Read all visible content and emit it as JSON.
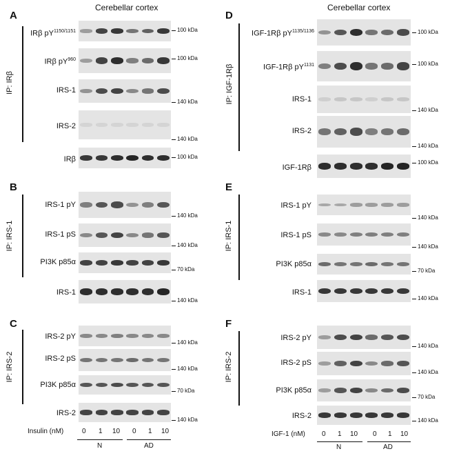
{
  "left": {
    "title": "Cerebellar cortex",
    "panels": [
      {
        "letter": "A",
        "ip": "IP: IRβ",
        "rows": [
          {
            "label": "IRβ pY",
            "sup": "1150/1151",
            "kda": "100 kDa"
          },
          {
            "label": "IRβ pY",
            "sup": "960",
            "kda": "100 kDa"
          },
          {
            "label": "IRS-1",
            "sup": "",
            "kda": "140 kDa"
          },
          {
            "label": "IRS-2",
            "sup": "",
            "kda": "140 kDa"
          },
          {
            "label": "IRβ",
            "sup": "",
            "kda": "100 kDa"
          }
        ]
      },
      {
        "letter": "B",
        "ip": "IP: IRS-1",
        "rows": [
          {
            "label": "IRS-1 pY",
            "sup": "",
            "kda": "140 kDa"
          },
          {
            "label": "IRS-1 pS",
            "sup": "",
            "kda": "140 kDa"
          },
          {
            "label": "PI3K p85α",
            "sup": "",
            "kda": "70 kDa"
          },
          {
            "label": "IRS-1",
            "sup": "",
            "kda": "140 kDa"
          }
        ]
      },
      {
        "letter": "C",
        "ip": "IP: IRS-2",
        "rows": [
          {
            "label": "IRS-2 pY",
            "sup": "",
            "kda": "140 kDa"
          },
          {
            "label": "IRS-2 pS",
            "sup": "",
            "kda": "140 kDa"
          },
          {
            "label": "PI3K p85α",
            "sup": "",
            "kda": "70 kDa"
          },
          {
            "label": "IRS-2",
            "sup": "",
            "kda": "140 kDa"
          }
        ]
      }
    ],
    "treatment_label": "Insulin (nM)",
    "doses": [
      "0",
      "1",
      "10",
      "0",
      "1",
      "10"
    ],
    "groups": [
      "N",
      "AD"
    ]
  },
  "right": {
    "title": "Cerebellar cortex",
    "panels": [
      {
        "letter": "D",
        "ip": "IP: IGF-1Rβ",
        "rows": [
          {
            "label": "IGF-1Rβ pY",
            "sup": "1135/1136",
            "kda": "100 kDa"
          },
          {
            "label": "IGF-1Rβ pY",
            "sup": "1131",
            "kda": "100 kDa"
          },
          {
            "label": "IRS-1",
            "sup": "",
            "kda": "140 kDa"
          },
          {
            "label": "IRS-2",
            "sup": "",
            "kda": "140 kDa"
          },
          {
            "label": "IGF-1Rβ",
            "sup": "",
            "kda": "100 kDa"
          }
        ]
      },
      {
        "letter": "E",
        "ip": "IP: IRS-1",
        "rows": [
          {
            "label": "IRS-1 pY",
            "sup": "",
            "kda": "140 kDa"
          },
          {
            "label": "IRS-1 pS",
            "sup": "",
            "kda": "140 kDa"
          },
          {
            "label": "PI3K p85α",
            "sup": "",
            "kda": "70 kDa"
          },
          {
            "label": "IRS-1",
            "sup": "",
            "kda": "140 kDa"
          }
        ]
      },
      {
        "letter": "F",
        "ip": "IP: IRS-2",
        "rows": [
          {
            "label": "IRS-2 pY",
            "sup": "",
            "kda": "140 kDa"
          },
          {
            "label": "IRS-2 pS",
            "sup": "",
            "kda": "140 kDa"
          },
          {
            "label": "PI3K p85α",
            "sup": "",
            "kda": "70 kDa"
          },
          {
            "label": "IRS-2",
            "sup": "",
            "kda": "140 kDa"
          }
        ]
      }
    ],
    "treatment_label": "IGF-1 (nM)",
    "doses": [
      "0",
      "1",
      "10",
      "0",
      "1",
      "10"
    ],
    "groups": [
      "N",
      "AD"
    ]
  },
  "colors": {
    "band": "#1a1a1a",
    "blot_background": "#e4e4e4"
  }
}
